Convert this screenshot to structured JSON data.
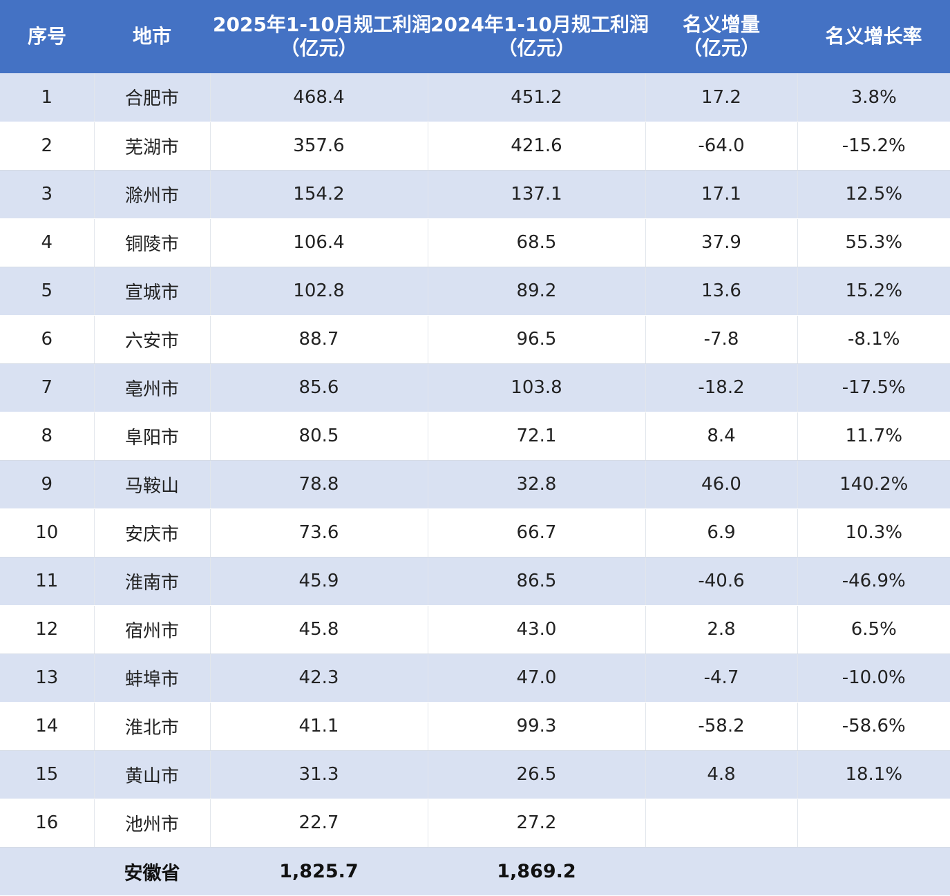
{
  "table": {
    "headers": [
      [
        "序号"
      ],
      [
        "地市"
      ],
      [
        "2025年1-10月规工利润",
        "（亿元）"
      ],
      [
        "2024年1-10月规工利润",
        "（亿元）"
      ],
      [
        "名义增量",
        "（亿元）"
      ],
      [
        "名义增长率"
      ]
    ],
    "rows": [
      [
        "1",
        "合肥市",
        "468.4",
        "451.2",
        "17.2",
        "3.8%"
      ],
      [
        "2",
        "芜湖市",
        "357.6",
        "421.6",
        "-64.0",
        "-15.2%"
      ],
      [
        "3",
        "滁州市",
        "154.2",
        "137.1",
        "17.1",
        "12.5%"
      ],
      [
        "4",
        "铜陵市",
        "106.4",
        "68.5",
        "37.9",
        "55.3%"
      ],
      [
        "5",
        "宣城市",
        "102.8",
        "89.2",
        "13.6",
        "15.2%"
      ],
      [
        "6",
        "六安市",
        "88.7",
        "96.5",
        "-7.8",
        "-8.1%"
      ],
      [
        "7",
        "亳州市",
        "85.6",
        "103.8",
        "-18.2",
        "-17.5%"
      ],
      [
        "8",
        "阜阳市",
        "80.5",
        "72.1",
        "8.4",
        "11.7%"
      ],
      [
        "9",
        "马鞍山",
        "78.8",
        "32.8",
        "46.0",
        "140.2%"
      ],
      [
        "10",
        "安庆市",
        "73.6",
        "66.7",
        "6.9",
        "10.3%"
      ],
      [
        "11",
        "淮南市",
        "45.9",
        "86.5",
        "-40.6",
        "-46.9%"
      ],
      [
        "12",
        "宿州市",
        "45.8",
        "43.0",
        "2.8",
        "6.5%"
      ],
      [
        "13",
        "蚌埠市",
        "42.3",
        "47.0",
        "-4.7",
        "-10.0%"
      ],
      [
        "14",
        "淮北市",
        "41.1",
        "99.3",
        "-58.2",
        "-58.6%"
      ],
      [
        "15",
        "黄山市",
        "31.3",
        "26.5",
        "4.8",
        "18.1%"
      ],
      [
        "16",
        "池州市",
        "22.7",
        "27.2",
        "",
        ""
      ]
    ],
    "total": [
      "",
      "安徽省",
      "1,825.7",
      "1,869.2",
      "",
      ""
    ]
  },
  "colors": {
    "header_bg": "#4472c4",
    "band_bg": "#d9e1f2",
    "header_text": "#ffffff"
  }
}
